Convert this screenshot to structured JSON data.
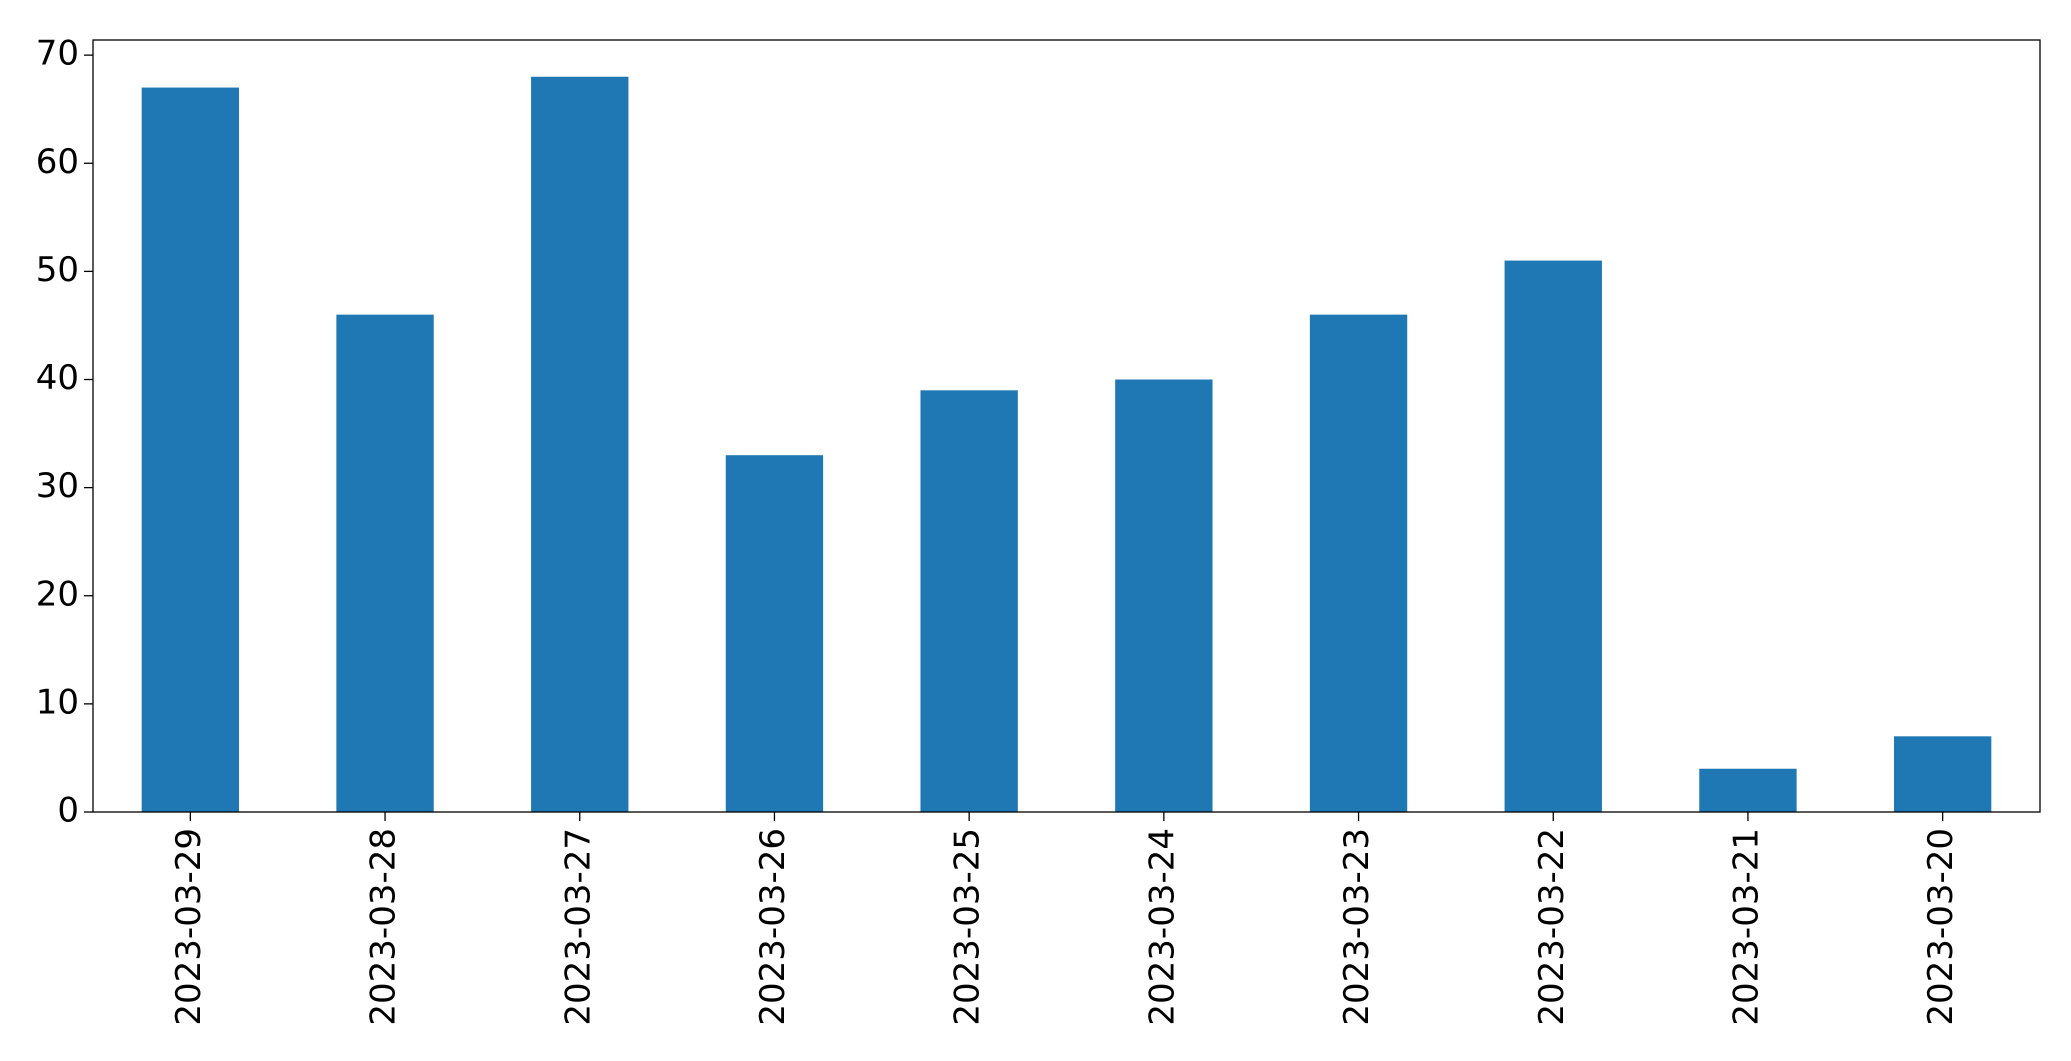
{
  "chart_data": {
    "type": "bar",
    "categories": [
      "2023-03-29",
      "2023-03-28",
      "2023-03-27",
      "2023-03-26",
      "2023-03-25",
      "2023-03-24",
      "2023-03-23",
      "2023-03-22",
      "2023-03-21",
      "2023-03-20"
    ],
    "values": [
      67,
      46,
      68,
      33,
      39,
      40,
      46,
      51,
      4,
      7
    ],
    "color": "#1f77b4",
    "ylim": [
      0,
      71.4
    ],
    "yticks": [
      0,
      10,
      20,
      30,
      40,
      50,
      60,
      70
    ],
    "grid": false
  }
}
